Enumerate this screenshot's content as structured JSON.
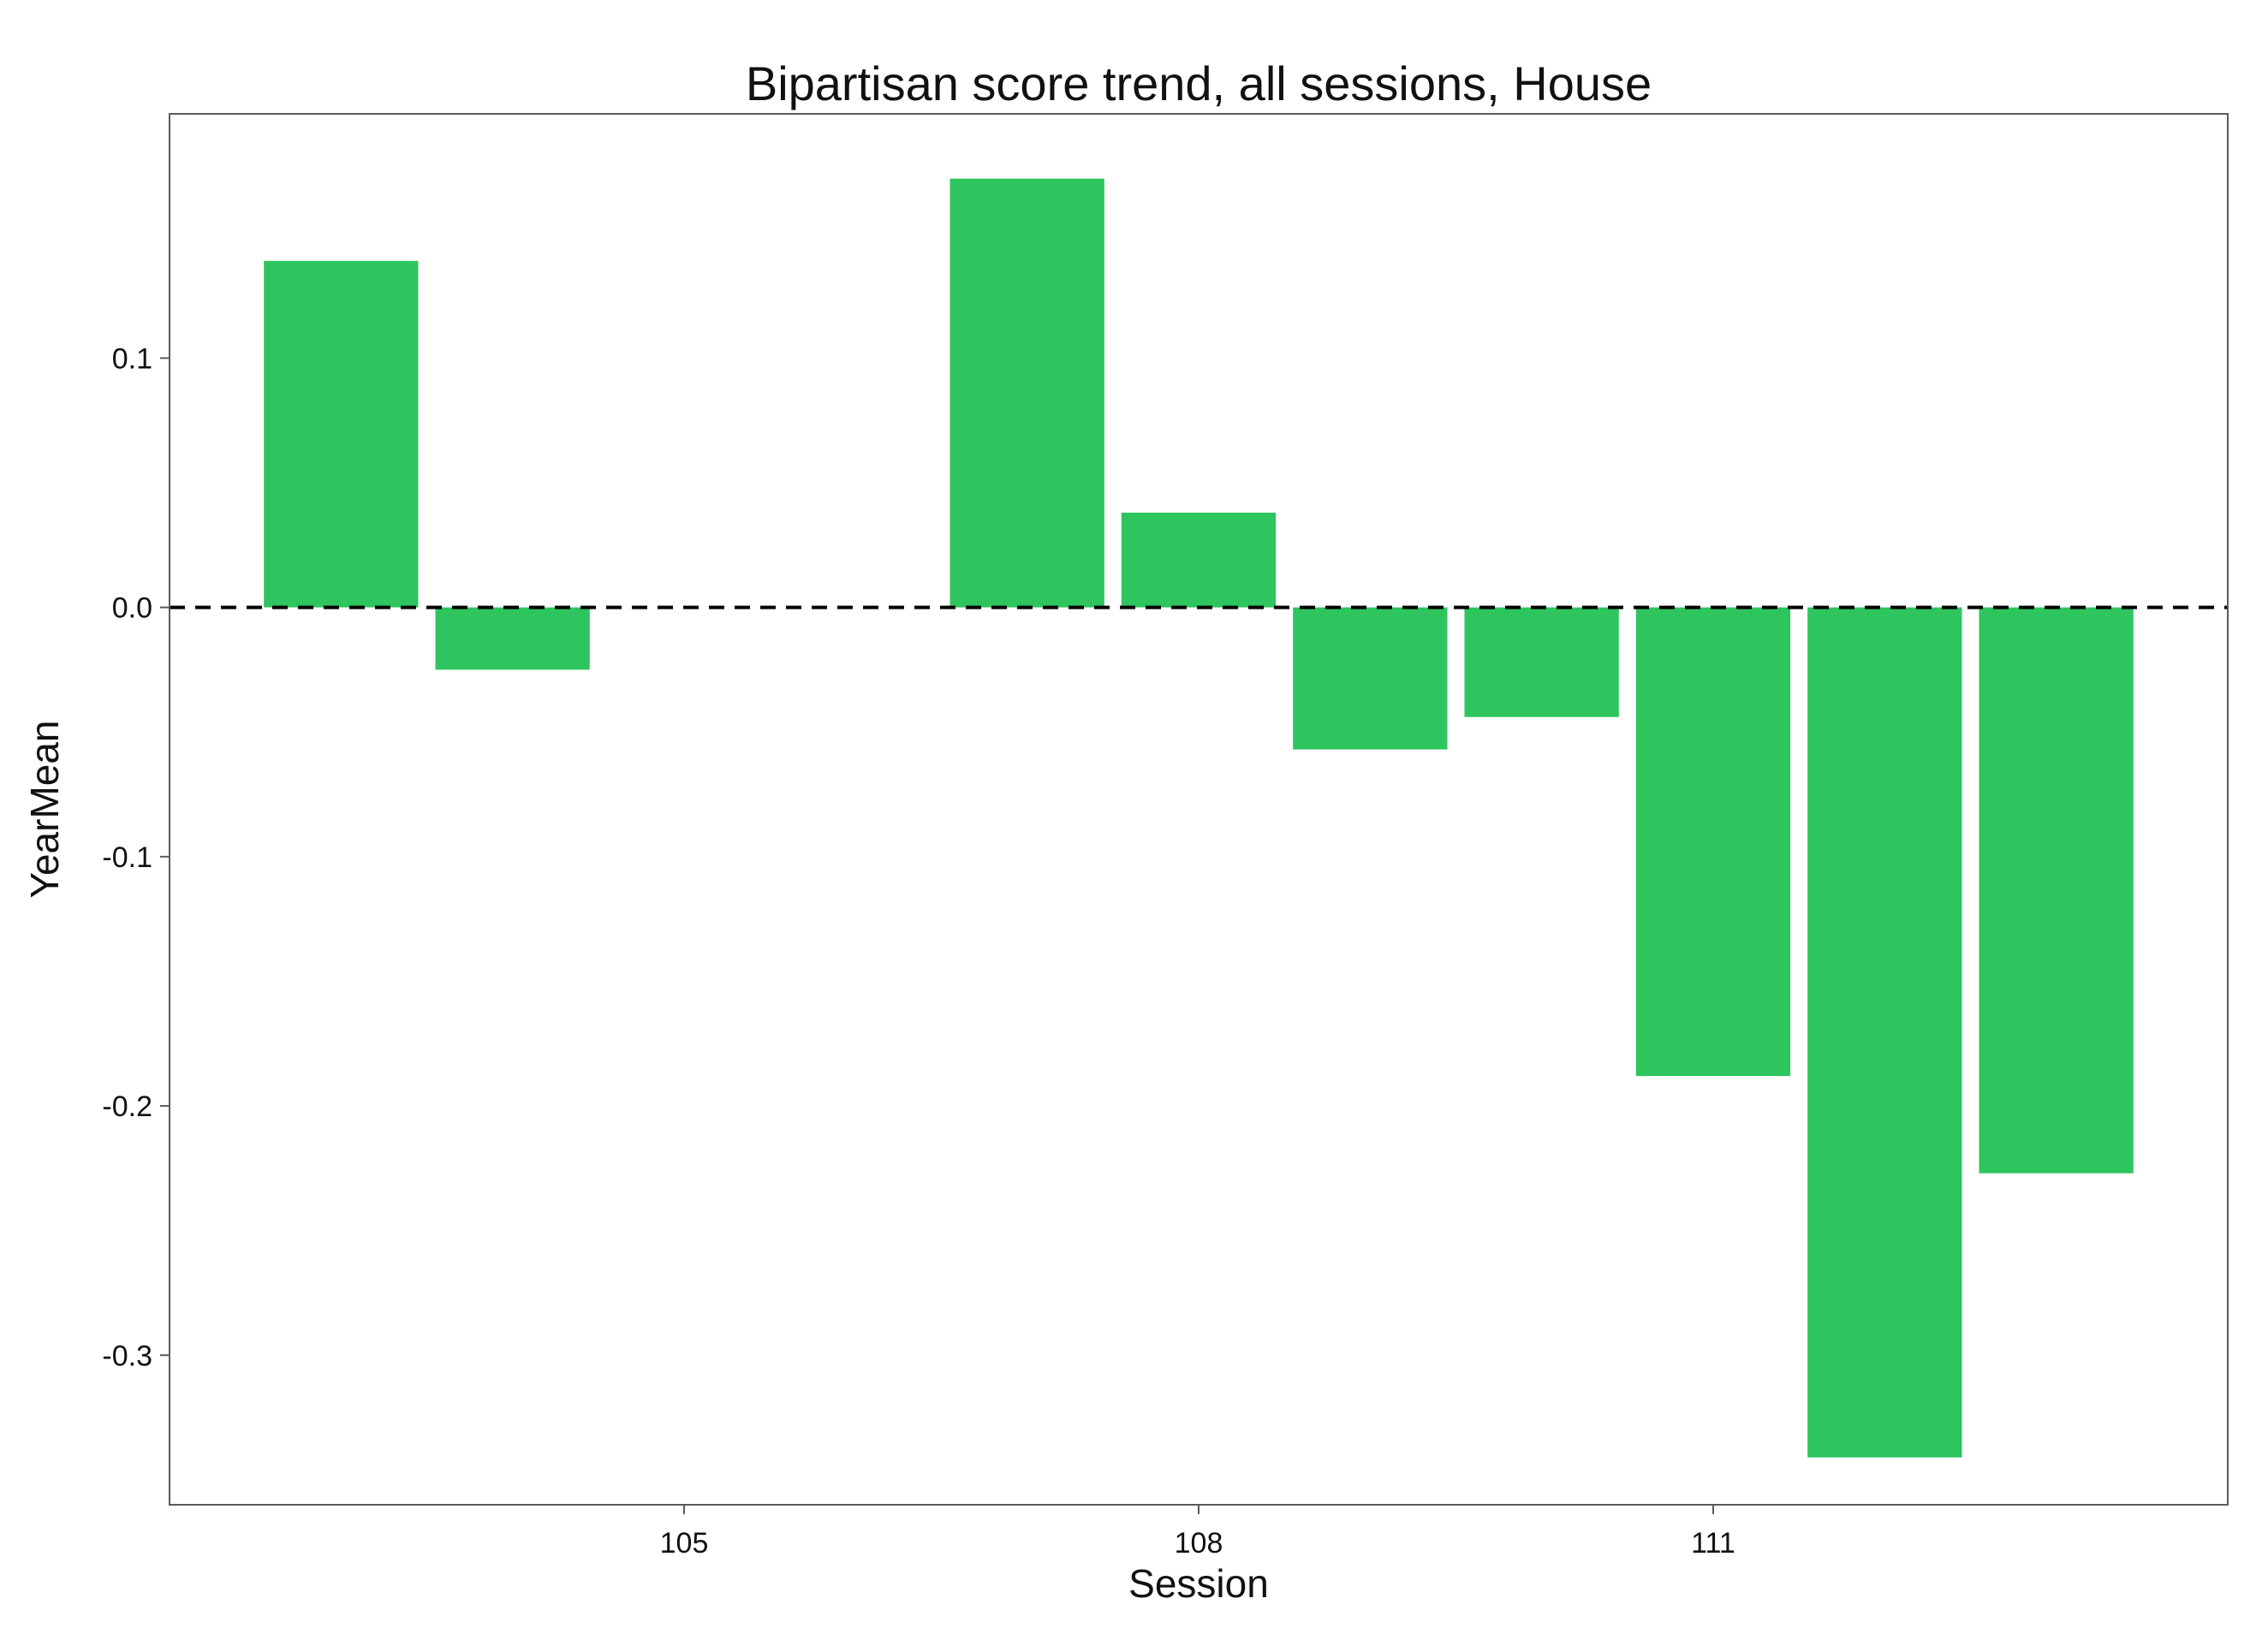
{
  "chart_data": {
    "type": "bar",
    "title": "Bipartisan score trend, all sessions, House",
    "xlabel": "Session",
    "ylabel": "YearMean",
    "x": [
      103,
      104,
      105,
      106,
      107,
      108,
      109,
      110,
      111,
      112,
      113
    ],
    "values": [
      0.139,
      -0.025,
      null,
      null,
      0.172,
      0.038,
      -0.057,
      -0.044,
      -0.188,
      -0.341,
      -0.227
    ],
    "xlim": [
      102,
      114
    ],
    "ylim": [
      -0.36,
      0.198
    ],
    "x_ticks": [
      105,
      108,
      111
    ],
    "x_tick_labels": [
      "105",
      "108",
      "111"
    ],
    "y_ticks": [
      -0.3,
      -0.2,
      -0.1,
      0.0,
      0.1
    ],
    "y_tick_labels": [
      "-0.3",
      "-0.2",
      "-0.1",
      "0.0",
      "0.1"
    ],
    "bar_color": "#2ec55e",
    "reference_line": {
      "y": 0,
      "style": "dashed",
      "color": "#000000"
    },
    "grid": false,
    "legend": "none"
  }
}
